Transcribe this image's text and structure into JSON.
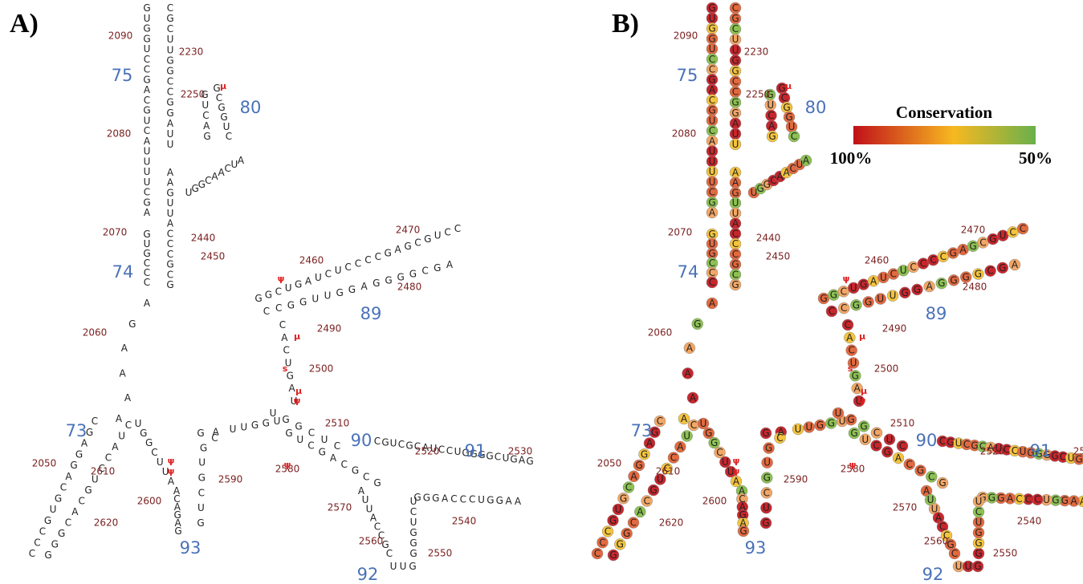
{
  "panels": [
    "A)",
    "B)"
  ],
  "strands": [
    "GUGGUCCGACGUCAUUUUCGA",
    "GUGCCC",
    "AGAAAA",
    "CGAGGACGUGCCC",
    "GGGCACGUCCAUC",
    "UGGCUUA",
    "ACAGAG",
    "GACGUGCUG",
    "UUGGU",
    "GGCUGAUCUCCCCGAGCGUCC",
    "AGCGGGGAGGUUGGCC",
    "CACUGAU",
    "UGGCUC",
    "GUCGACGCG",
    "CGUCGCAUCCUGGGGCUGAG",
    "AAGGUCCCAGGG",
    "AUUACCGC",
    "UUG",
    "GGGUCU",
    "CGCUUGGCCGGAUU",
    "GUCAG",
    "GCGGUC",
    "AAGUUACCCGCG",
    "UGGCAACUA"
  ],
  "position_labels": [
    2090,
    2230,
    2250,
    2080,
    2070,
    2440,
    2450,
    2460,
    2470,
    2480,
    2490,
    2500,
    2510,
    2520,
    2530,
    2540,
    2550,
    2560,
    2570,
    2580,
    2590,
    2600,
    2610,
    2620,
    2050,
    2060
  ],
  "helix_labels": [
    75,
    80,
    74,
    89,
    90,
    91,
    93,
    92,
    73
  ],
  "modifications": [
    "μ",
    "ψ",
    "μ",
    "s",
    "μ",
    "ψ",
    "ψ",
    "ψ",
    "ψ"
  ],
  "legend": {
    "title": "Conservation",
    "high": "100%",
    "low": "50%"
  }
}
